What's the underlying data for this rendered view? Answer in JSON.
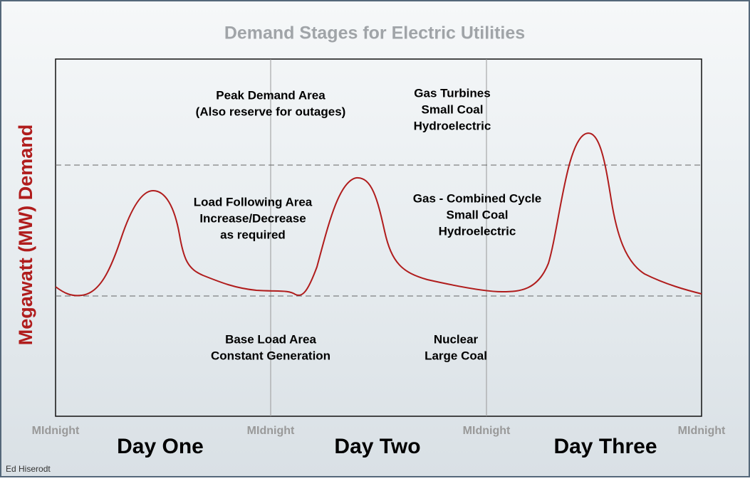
{
  "title": "Demand Stages for Electric Utilities",
  "y_axis_label": "Megawatt (MW) Demand",
  "time_labels": [
    "MIdnight",
    "MIdnight",
    "MIdnight",
    "MIdnight"
  ],
  "day_labels": [
    "Day One",
    "Day Two",
    "Day Three"
  ],
  "regions": [
    {
      "lines": [
        "Peak Demand Area",
        "(Also reserve for outages)"
      ]
    },
    {
      "lines": [
        "Gas Turbines",
        "Small Coal",
        "Hydroelectric"
      ]
    },
    {
      "lines": [
        "Load Following Area",
        "Increase/Decrease",
        "as required"
      ]
    },
    {
      "lines": [
        "Gas - Combined Cycle",
        "Small Coal",
        "Hydroelectric"
      ]
    },
    {
      "lines": [
        "Base Load Area",
        "Constant Generation"
      ]
    },
    {
      "lines": [
        "Nuclear",
        "Large Coal"
      ]
    }
  ],
  "credit": "Ed Hiserodt"
}
